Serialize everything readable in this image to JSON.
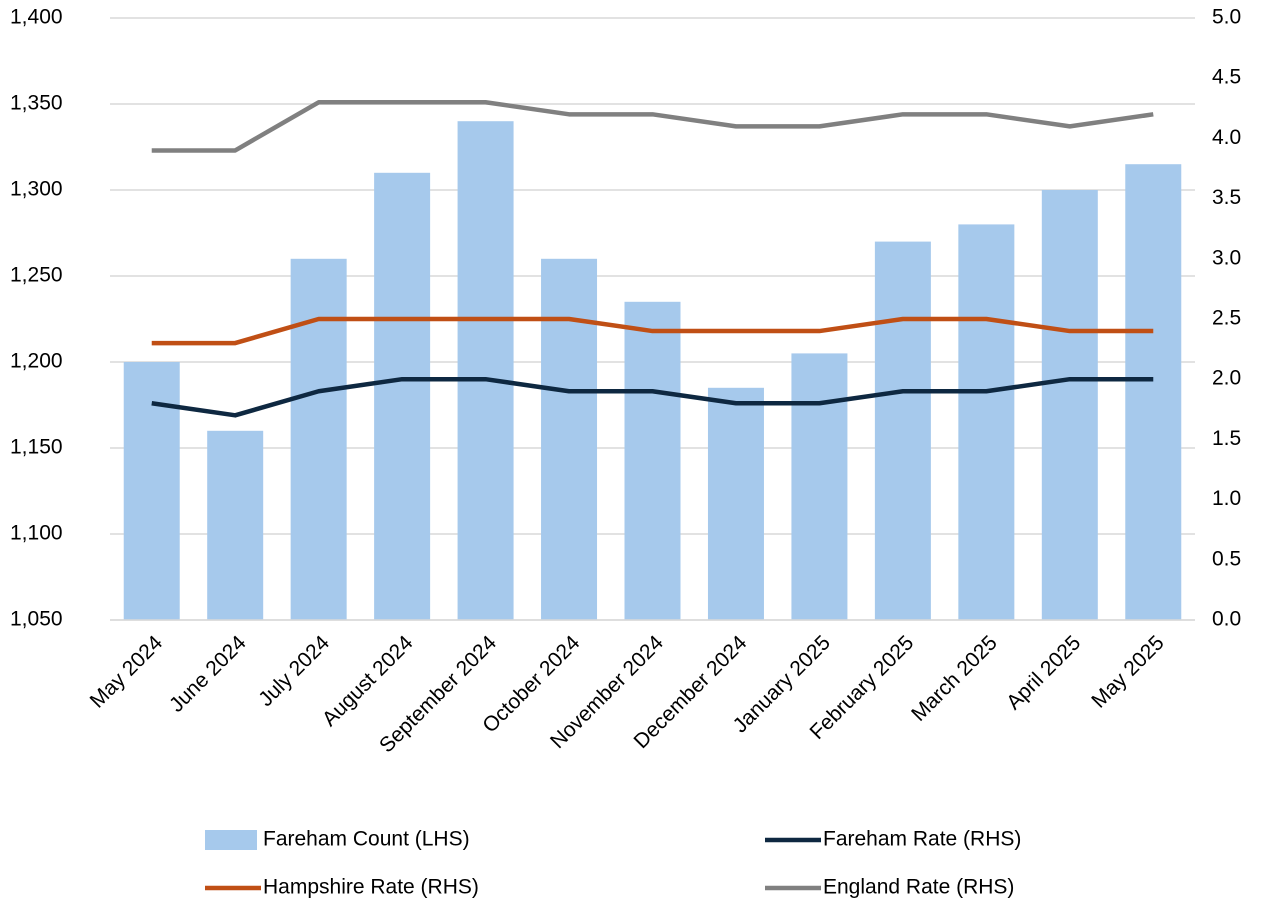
{
  "chart_data": {
    "type": "bar",
    "categories": [
      "May 2024",
      "June 2024",
      "July 2024",
      "August 2024",
      "September 2024",
      "October 2024",
      "November 2024",
      "December 2024",
      "January 2025",
      "February 2025",
      "March 2025",
      "April 2025",
      "May 2025"
    ],
    "series": [
      {
        "name": "Fareham Count (LHS)",
        "type": "bar",
        "color": "#a6c9ec",
        "values": [
          1200,
          1160,
          1260,
          1310,
          1340,
          1260,
          1235,
          1185,
          1205,
          1270,
          1280,
          1300,
          1315
        ]
      },
      {
        "name": "Fareham Rate (RHS)",
        "type": "line",
        "axis": "y2",
        "color": "#0e2841",
        "values": [
          1.8,
          1.7,
          1.9,
          2.0,
          2.0,
          1.9,
          1.9,
          1.8,
          1.8,
          1.9,
          1.9,
          2.0,
          2.0
        ]
      },
      {
        "name": "Hampshire Rate (RHS)",
        "type": "line",
        "axis": "y2",
        "color": "#c04f15",
        "values": [
          2.3,
          2.3,
          2.5,
          2.5,
          2.5,
          2.5,
          2.4,
          2.4,
          2.4,
          2.5,
          2.5,
          2.4,
          2.4
        ]
      },
      {
        "name": "England Rate (RHS)",
        "type": "line",
        "axis": "y2",
        "color": "#808080",
        "values": [
          3.9,
          3.9,
          4.3,
          4.3,
          4.3,
          4.2,
          4.2,
          4.1,
          4.1,
          4.2,
          4.2,
          4.1,
          4.2
        ]
      }
    ],
    "ylim": [
      1050,
      1400
    ],
    "yticks": [
      {
        "value": 1050,
        "label": "1,050"
      },
      {
        "value": 1100,
        "label": "1,100"
      },
      {
        "value": 1150,
        "label": "1,150"
      },
      {
        "value": 1200,
        "label": "1,200"
      },
      {
        "value": 1250,
        "label": "1,250"
      },
      {
        "value": 1300,
        "label": "1,300"
      },
      {
        "value": 1350,
        "label": "1,350"
      },
      {
        "value": 1400,
        "label": "1,400"
      }
    ],
    "y2lim": [
      0,
      5
    ],
    "y2ticks": [
      {
        "value": 0,
        "label": "0.0"
      },
      0.5,
      {
        "value": 1,
        "label": "1.0"
      },
      1.5,
      {
        "value": 2,
        "label": "2.0"
      },
      2.5,
      {
        "value": 3,
        "label": "3.0"
      },
      3.5,
      {
        "value": 4,
        "label": "4.0"
      },
      4.5,
      {
        "value": 5,
        "label": "5.0"
      }
    ],
    "grid": true,
    "legend": "bottom"
  }
}
